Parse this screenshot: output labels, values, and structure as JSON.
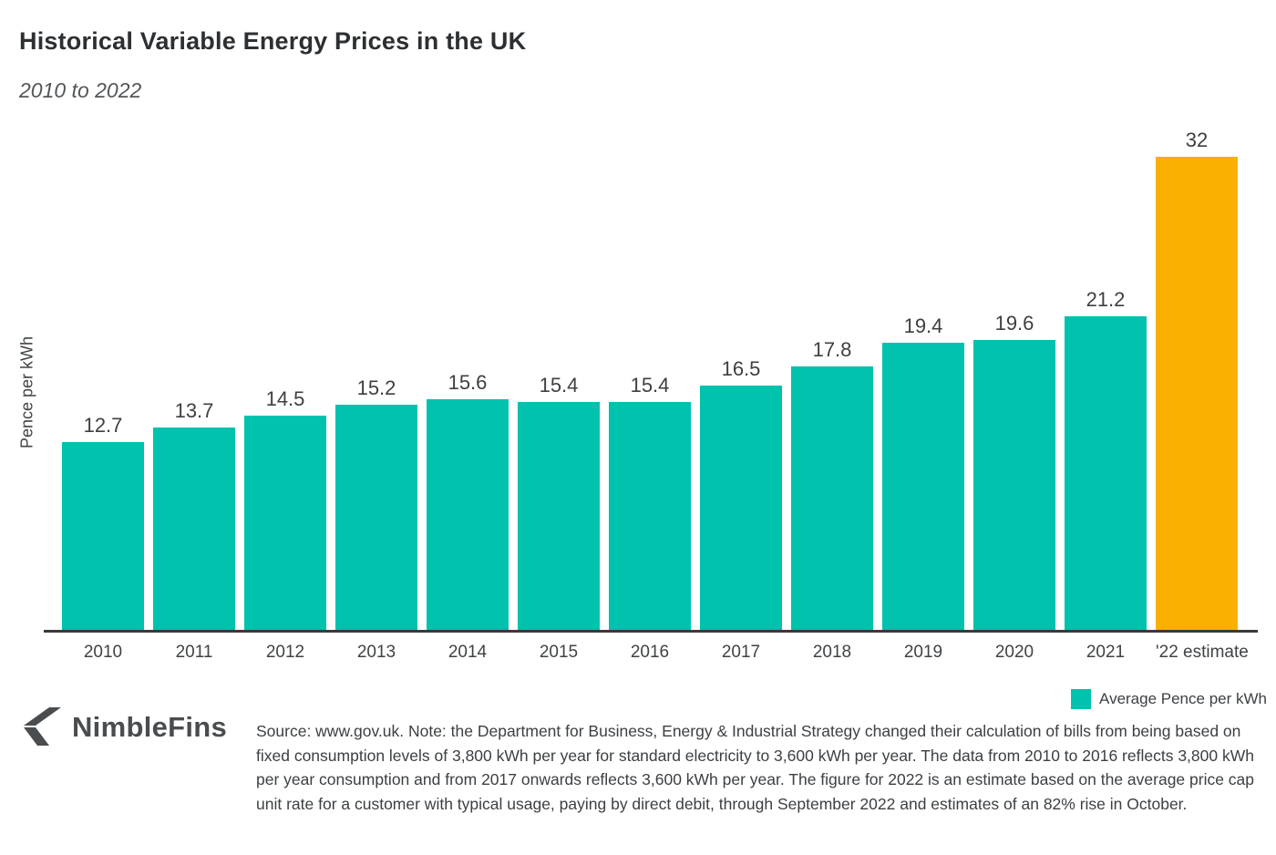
{
  "header": {
    "title": "Historical Variable Energy Prices in the UK",
    "subtitle": "2010 to 2022"
  },
  "chart_data": {
    "type": "bar",
    "title": "Historical Variable Energy Prices in the UK",
    "subtitle": "2010 to 2022",
    "categories": [
      "2010",
      "2011",
      "2012",
      "2013",
      "2014",
      "2015",
      "2016",
      "2017",
      "2018",
      "2019",
      "2020",
      "2021",
      "'22 estimate"
    ],
    "values": [
      12.7,
      13.7,
      14.5,
      15.2,
      15.6,
      15.4,
      15.4,
      16.5,
      17.8,
      19.4,
      19.6,
      21.2,
      32
    ],
    "xlabel": "",
    "ylabel": "Pence per kWh",
    "ylim": [
      0,
      32
    ],
    "grid": false,
    "legend_position": "bottom-right",
    "legend": [
      {
        "label": "Average Pence per kWh",
        "color": "#00C2AD"
      }
    ],
    "highlight_index": 12,
    "colors": {
      "bar": "#00C2AD",
      "estimate_bar": "#F9B000",
      "axis_line": "#3a3a3a",
      "label_text": "#3d4043"
    }
  },
  "footer": {
    "logo_text": "NimbleFins",
    "source_text": "Source: www.gov.uk. Note: the Department for Business, Energy & Industrial Strategy changed their calculation of bills from being based on fixed consumption levels of 3,800 kWh per year for standard electricity to 3,600 kWh per year. The data from 2010 to 2016 reflects 3,800 kWh per year consumption and from 2017 onwards reflects 3,600 kWh per year. The figure for 2022 is an estimate based on the average price cap unit rate for a customer with typical usage, paying by direct debit, through September 2022 and estimates of an 82% rise in October."
  }
}
